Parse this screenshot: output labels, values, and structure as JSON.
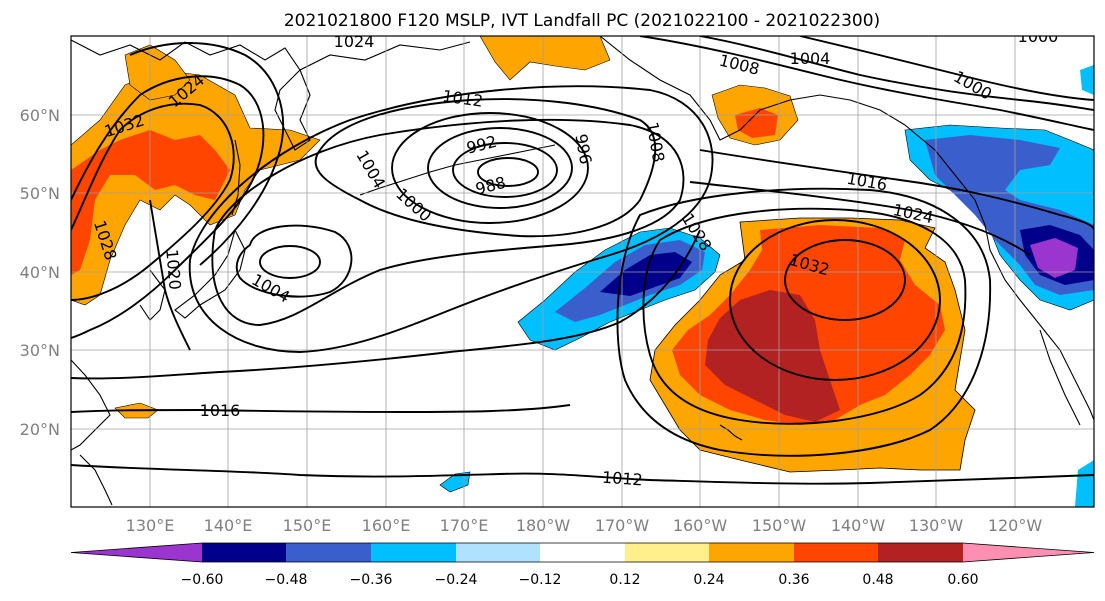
{
  "figure": {
    "title": "2021021800 F120 MSLP, IVT Landfall PC (2021022100 - 2021022300)"
  },
  "axes": {
    "lat_labels": [
      "60°N",
      "50°N",
      "40°N",
      "30°N",
      "20°N"
    ],
    "lon_labels": [
      "130°E",
      "140°E",
      "150°E",
      "160°E",
      "170°E",
      "180°W",
      "170°W",
      "160°W",
      "150°W",
      "140°W",
      "130°W",
      "120°W"
    ]
  },
  "contour_labels": [
    "1024",
    "1008",
    "1004",
    "1000",
    "1012",
    "992",
    "996",
    "988",
    "1008",
    "1004",
    "1000",
    "1016",
    "1024",
    "1028",
    "1032",
    "1024",
    "1032",
    "1028",
    "1020",
    "1004",
    "1016",
    "1012",
    "1000"
  ],
  "colorbar": {
    "ticks": [
      "−0.60",
      "−0.48",
      "−0.36",
      "−0.24",
      "−0.12",
      "0.12",
      "0.24",
      "0.36",
      "0.48",
      "0.60"
    ],
    "colors": [
      "#9b35cf",
      "#00008b",
      "#3a5fcd",
      "#00bfff",
      "#b0e2ff",
      "#ffffff",
      "#fff08c",
      "#ffa500",
      "#ff4500",
      "#b22222",
      "#ff8fb2"
    ]
  },
  "colors": {
    "purple": "#9b35cf",
    "navy": "#00008b",
    "royal_blue": "#3a5fcd",
    "sky_blue": "#00bfff",
    "light_blue": "#b0e2ff",
    "yellow": "#fff08c",
    "orange": "#ffa500",
    "red_orange": "#ff4500",
    "dark_red": "#b22222",
    "pink": "#ff8fb2"
  }
}
